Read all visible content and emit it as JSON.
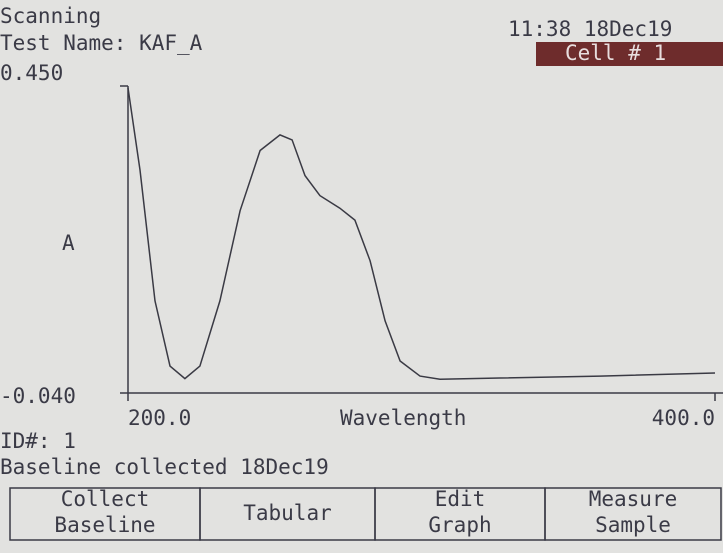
{
  "header": {
    "status": "Scanning",
    "test_name": "Test Name: KAF_A",
    "datetime": "11:38 18Dec19",
    "cell": "Cell # 1"
  },
  "chart_data": {
    "type": "line",
    "x": [
      200,
      204.1,
      209.2,
      214.3,
      219.4,
      224.5,
      231.3,
      238.2,
      245.0,
      251.8,
      255.9,
      260.3,
      265.4,
      272.2,
      277.3,
      282.5,
      287.6,
      292.7,
      299.5,
      306.3,
      326.7,
      360.8,
      400
    ],
    "values": [
      0.447,
      0.316,
      0.107,
      0.003,
      -0.017,
      0.003,
      0.107,
      0.251,
      0.347,
      0.372,
      0.364,
      0.307,
      0.275,
      0.255,
      0.236,
      0.171,
      0.075,
      0.011,
      -0.013,
      -0.018,
      -0.016,
      -0.013,
      -0.008
    ],
    "color": "#3a3a44",
    "xlabel": "Wavelength",
    "ylabel": "A",
    "xlim": [
      200,
      400
    ],
    "ylim": [
      -0.04,
      0.45
    ],
    "xticks": [
      {
        "value": 200,
        "label": "200.0"
      },
      {
        "value": 400,
        "label": "400.0"
      }
    ],
    "yticks": [
      {
        "value": 0.45,
        "label": "0.450"
      },
      {
        "value": -0.04,
        "label": "-0.040"
      }
    ]
  },
  "footer": {
    "id": "ID#: 1",
    "status": "Baseline collected 18Dec19",
    "buttons": [
      [
        "Collect",
        "Baseline"
      ],
      [
        "Tabular"
      ],
      [
        "Edit",
        "Graph"
      ],
      [
        "Measure",
        "Sample"
      ]
    ]
  }
}
